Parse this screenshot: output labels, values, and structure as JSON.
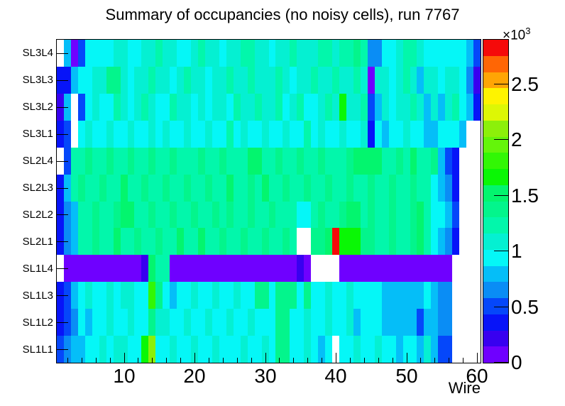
{
  "title": "Summary of occupancies (no noisy cells), run 7767",
  "colors": {
    "background": "#ffffff",
    "frame": "#000000",
    "empty_cell": "#ffffff"
  },
  "chart_data": {
    "type": "heatmap",
    "title": "Summary of occupancies (no noisy cells), run 7767",
    "xlabel": "Wire",
    "ylabel": "",
    "grid": false,
    "legend_position": "right-colorbar",
    "x_range": [
      0.5,
      60.5
    ],
    "n_wires": 60,
    "x_major_ticks": [
      10,
      20,
      30,
      40,
      50,
      60
    ],
    "x_minor_tick_step": 2,
    "rows_top_to_bottom": [
      "SL3L4",
      "SL3L3",
      "SL3L2",
      "SL3L1",
      "SL2L4",
      "SL2L3",
      "SL2L2",
      "SL2L1",
      "SL1L4",
      "SL1L3",
      "SL1L2",
      "SL1L1"
    ],
    "z_range": [
      0,
      2900
    ],
    "z_ticks": [
      0,
      500,
      1000,
      1500,
      2000,
      2500
    ],
    "z_tick_labels": [
      "0",
      "0.5",
      "1",
      "1.5",
      "2",
      "2.5"
    ],
    "z_exponent_base": "×10",
    "z_exponent_power": "3",
    "palette": [
      "#6f00ff",
      "#3800f0",
      "#0714f8",
      "#0547fa",
      "#0a8df5",
      "#05bef8",
      "#05f7f7",
      "#05f0d2",
      "#02f7ab",
      "#03f58c",
      "#03f56e",
      "#0af705",
      "#32f705",
      "#64f50a",
      "#8cf00a",
      "#ddf705",
      "#fef300",
      "#ffa505",
      "#ff6605",
      "#f50a0a"
    ],
    "values": [
      [
        null,
        810,
        90,
        510,
        950,
        950,
        950,
        950,
        1090,
        1090,
        950,
        950,
        1090,
        1090,
        1240,
        1090,
        1090,
        950,
        950,
        1090,
        1240,
        1090,
        1090,
        950,
        1090,
        1090,
        1240,
        1240,
        1090,
        1090,
        950,
        1090,
        1090,
        1240,
        1090,
        1090,
        1090,
        1240,
        1240,
        1090,
        1240,
        1240,
        1380,
        1240,
        660,
        660,
        950,
        950,
        1090,
        1240,
        1240,
        1090,
        950,
        950,
        950,
        950,
        950,
        950,
        810,
        510
      ],
      [
        360,
        360,
        810,
        950,
        950,
        1090,
        1090,
        1380,
        1380,
        1090,
        950,
        1090,
        1090,
        1240,
        1090,
        1090,
        950,
        1090,
        1240,
        1090,
        1090,
        950,
        1090,
        1090,
        1240,
        1090,
        1090,
        1240,
        1090,
        1090,
        1090,
        1240,
        1090,
        950,
        1090,
        1090,
        1240,
        1090,
        1090,
        1240,
        1090,
        1090,
        1240,
        1090,
        90,
        1090,
        1090,
        950,
        1090,
        1240,
        1090,
        810,
        1090,
        1090,
        950,
        1090,
        1090,
        950,
        660,
        210
      ],
      [
        210,
        810,
        null,
        510,
        950,
        1090,
        950,
        950,
        1240,
        1090,
        950,
        1090,
        1240,
        1090,
        950,
        950,
        1240,
        1090,
        1090,
        950,
        1090,
        950,
        1090,
        1090,
        950,
        1240,
        1090,
        1090,
        1240,
        1090,
        1090,
        1240,
        950,
        1090,
        1240,
        950,
        950,
        1090,
        1240,
        1090,
        1660,
        1090,
        1090,
        1240,
        510,
        810,
        1090,
        950,
        1090,
        1090,
        1240,
        1090,
        810,
        1090,
        810,
        1090,
        1240,
        950,
        810,
        360
      ],
      [
        360,
        510,
        null,
        950,
        1090,
        950,
        950,
        1090,
        950,
        950,
        1090,
        950,
        950,
        1090,
        950,
        1090,
        950,
        950,
        1090,
        950,
        950,
        1090,
        950,
        950,
        1240,
        950,
        1090,
        950,
        950,
        1090,
        950,
        950,
        1090,
        950,
        950,
        1240,
        950,
        1090,
        950,
        950,
        1090,
        950,
        950,
        1090,
        360,
        950,
        810,
        950,
        950,
        1090,
        950,
        950,
        810,
        810,
        950,
        950,
        950,
        810,
        null,
        null
      ],
      [
        null,
        510,
        1240,
        1240,
        1380,
        1240,
        1240,
        1380,
        1240,
        1240,
        1380,
        1240,
        1240,
        1380,
        1240,
        1240,
        1380,
        1240,
        1240,
        1240,
        1380,
        1240,
        1240,
        1380,
        1240,
        1240,
        1240,
        1520,
        1520,
        1240,
        1240,
        1380,
        1240,
        1240,
        1380,
        1240,
        1240,
        1380,
        1240,
        1240,
        1240,
        1380,
        1520,
        1520,
        1520,
        1520,
        1240,
        1240,
        1380,
        1240,
        1520,
        1240,
        1240,
        1380,
        810,
        510,
        360,
        null,
        null,
        null
      ],
      [
        360,
        810,
        1240,
        1380,
        1240,
        1240,
        1380,
        1240,
        1240,
        1520,
        1240,
        1240,
        1380,
        1240,
        1240,
        1380,
        1240,
        1240,
        1380,
        1240,
        1240,
        1380,
        1240,
        1240,
        1520,
        1240,
        1240,
        1380,
        1240,
        1520,
        1240,
        1240,
        1380,
        1240,
        1240,
        1380,
        1240,
        1240,
        1380,
        1240,
        1240,
        1380,
        1240,
        1240,
        1380,
        1240,
        1240,
        1380,
        1240,
        1240,
        1380,
        1240,
        1240,
        950,
        810,
        660,
        360,
        null,
        null,
        null
      ],
      [
        360,
        660,
        810,
        1240,
        1240,
        1380,
        1240,
        1240,
        1380,
        1520,
        1520,
        1240,
        1240,
        1380,
        1240,
        1240,
        1380,
        1240,
        1240,
        1380,
        1240,
        1240,
        1380,
        1240,
        1380,
        1240,
        1240,
        1380,
        1240,
        1240,
        1380,
        1240,
        1240,
        1240,
        950,
        950,
        1240,
        1380,
        1240,
        1240,
        1380,
        1520,
        1520,
        1240,
        1380,
        1240,
        1240,
        1380,
        1240,
        1240,
        1380,
        1520,
        1240,
        950,
        950,
        810,
        510,
        null,
        null,
        null
      ],
      [
        360,
        660,
        810,
        1240,
        1240,
        1380,
        1240,
        1240,
        1520,
        1240,
        1240,
        1380,
        1240,
        1240,
        1380,
        1240,
        1240,
        1520,
        1240,
        1240,
        1520,
        1240,
        1240,
        1380,
        1240,
        1240,
        1380,
        1240,
        1240,
        1380,
        1240,
        1240,
        1380,
        1240,
        null,
        null,
        1380,
        1380,
        1520,
        2850,
        1660,
        1660,
        1660,
        1380,
        1380,
        1240,
        1240,
        1380,
        1240,
        1240,
        1380,
        1520,
        1240,
        950,
        810,
        660,
        360,
        null,
        null,
        null
      ],
      [
        null,
        90,
        90,
        90,
        90,
        90,
        90,
        90,
        90,
        90,
        90,
        90,
        210,
        1520,
        1240,
        1240,
        90,
        90,
        90,
        90,
        90,
        90,
        90,
        90,
        90,
        90,
        90,
        90,
        90,
        90,
        90,
        90,
        90,
        90,
        210,
        90,
        null,
        null,
        null,
        null,
        90,
        90,
        90,
        90,
        90,
        90,
        90,
        90,
        90,
        90,
        90,
        90,
        90,
        90,
        90,
        90,
        null,
        null,
        null,
        null
      ],
      [
        360,
        510,
        810,
        950,
        1090,
        950,
        950,
        1090,
        950,
        1090,
        1090,
        950,
        950,
        1810,
        1380,
        950,
        810,
        950,
        950,
        1090,
        950,
        950,
        1090,
        950,
        950,
        1090,
        950,
        950,
        1380,
        1380,
        950,
        1380,
        1380,
        1380,
        950,
        1380,
        950,
        950,
        1090,
        950,
        950,
        1090,
        950,
        950,
        950,
        950,
        810,
        810,
        810,
        810,
        810,
        810,
        950,
        810,
        660,
        660,
        null,
        null,
        null,
        null
      ],
      [
        360,
        510,
        660,
        950,
        810,
        950,
        950,
        1090,
        950,
        950,
        1090,
        950,
        950,
        1380,
        1090,
        1090,
        950,
        950,
        1090,
        950,
        950,
        1090,
        950,
        950,
        1090,
        950,
        950,
        1090,
        950,
        950,
        950,
        1380,
        1380,
        950,
        950,
        1090,
        950,
        950,
        1090,
        950,
        950,
        1090,
        810,
        950,
        950,
        950,
        810,
        810,
        810,
        810,
        810,
        510,
        810,
        810,
        660,
        660,
        null,
        null,
        null,
        null
      ],
      [
        510,
        660,
        810,
        810,
        950,
        950,
        1090,
        950,
        1090,
        1090,
        950,
        950,
        1660,
        2100,
        950,
        950,
        1090,
        950,
        950,
        1090,
        950,
        950,
        1090,
        950,
        950,
        950,
        1090,
        950,
        950,
        1090,
        950,
        1380,
        1380,
        950,
        950,
        1090,
        950,
        810,
        950,
        null,
        950,
        950,
        1090,
        950,
        950,
        1090,
        950,
        950,
        810,
        950,
        950,
        810,
        1090,
        810,
        510,
        510,
        null,
        null,
        null,
        null
      ]
    ]
  }
}
